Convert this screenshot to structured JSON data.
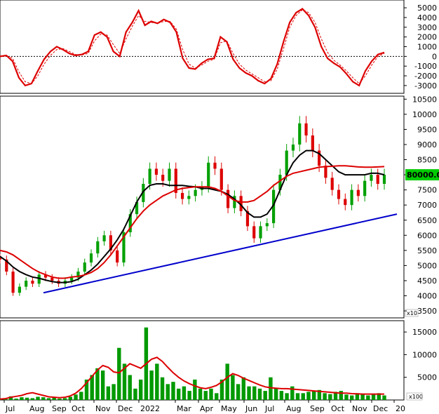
{
  "chart_data": [
    {
      "type": "line",
      "panel": "oscillator",
      "yticks": [
        5000,
        4000,
        3000,
        2000,
        1000,
        0,
        -1000,
        -2000,
        -3000
      ],
      "ylim": [
        -3800,
        5800
      ],
      "zero_line": "dashed",
      "colors": {
        "main": "#dd0000",
        "signal": "#dd0000"
      },
      "series": [
        {
          "style": "solid",
          "values": [
            0,
            100,
            -500,
            -2200,
            -3000,
            -2800,
            -1500,
            -300,
            500,
            1000,
            700,
            300,
            100,
            200,
            500,
            2200,
            2500,
            2000,
            500,
            0,
            2500,
            3500,
            4700,
            3200,
            3600,
            3400,
            3800,
            3500,
            2500,
            -200,
            -1200,
            -1300,
            -700,
            -300,
            -200,
            2000,
            1500,
            -300,
            -1200,
            -1700,
            -2000,
            -2500,
            -2800,
            -2300,
            -800,
            1500,
            3500,
            4500,
            4900,
            4200,
            3000,
            1000,
            -200,
            -700,
            -1100,
            -1800,
            -2600,
            -3000,
            -1500,
            -500,
            200,
            400
          ]
        },
        {
          "style": "dashed",
          "values": [
            0,
            80,
            -200,
            -1600,
            -2600,
            -2800,
            -2000,
            -800,
            100,
            700,
            800,
            500,
            200,
            150,
            300,
            1600,
            2300,
            2200,
            1200,
            300,
            1800,
            3100,
            4200,
            3600,
            3500,
            3400,
            3600,
            3600,
            2800,
            700,
            -800,
            -1200,
            -900,
            -500,
            -300,
            1400,
            1600,
            300,
            -800,
            -1400,
            -1800,
            -2200,
            -2600,
            -2500,
            -1300,
            800,
            3000,
            4200,
            4800,
            4500,
            3500,
            1800,
            400,
            -400,
            -900,
            -1500,
            -2200,
            -2800,
            -2000,
            -900,
            0,
            300
          ]
        }
      ]
    },
    {
      "type": "candlestick",
      "panel": "price",
      "yticks": [
        10500,
        10000,
        9500,
        9000,
        8500,
        8000,
        7500,
        7000,
        6500,
        6000,
        5500,
        5000,
        4500,
        4000,
        3500
      ],
      "ylim": [
        3270,
        10600
      ],
      "multiplier_label": "x10",
      "last_price_label": "80000.00",
      "colors": {
        "up": "#00a000",
        "down": "#dd0000",
        "ma_fast": "#000000",
        "ma_slow": "#dd0000",
        "trendline": "#0000cc"
      },
      "close": [
        5200,
        4800,
        4100,
        4300,
        4500,
        4400,
        4700,
        4600,
        4500,
        4400,
        4500,
        4600,
        4800,
        5100,
        5400,
        5800,
        6000,
        5500,
        5100,
        6100,
        6700,
        7100,
        7700,
        8200,
        8000,
        7800,
        8200,
        7400,
        7200,
        7300,
        7500,
        7600,
        8400,
        8200,
        7500,
        6900,
        7300,
        6800,
        6300,
        5900,
        6300,
        6400,
        7500,
        8000,
        8800,
        9000,
        9700,
        9300,
        8800,
        8300,
        7900,
        7500,
        7200,
        7000,
        7500,
        7300,
        7800,
        8000,
        7700,
        8000
      ],
      "ma_fast": [
        5300,
        5150,
        4950,
        4800,
        4700,
        4620,
        4580,
        4520,
        4470,
        4440,
        4440,
        4470,
        4550,
        4700,
        4850,
        5050,
        5300,
        5550,
        5850,
        6200,
        6650,
        7100,
        7450,
        7650,
        7700,
        7700,
        7650,
        7650,
        7650,
        7620,
        7600,
        7550,
        7550,
        7500,
        7450,
        7350,
        7200,
        7000,
        6750,
        6600,
        6600,
        6700,
        7000,
        7500,
        8000,
        8400,
        8650,
        8800,
        8800,
        8700,
        8500,
        8300,
        8100,
        8000,
        8000,
        8000,
        8000,
        8050,
        8050,
        8000
      ],
      "ma_slow": [
        5500,
        5450,
        5350,
        5200,
        5050,
        4900,
        4780,
        4700,
        4620,
        4580,
        4580,
        4620,
        4640,
        4690,
        4770,
        4900,
        5100,
        5350,
        5650,
        5950,
        6250,
        6550,
        6800,
        7000,
        7150,
        7300,
        7400,
        7500,
        7550,
        7580,
        7600,
        7600,
        7600,
        7550,
        7450,
        7300,
        7150,
        7100,
        7100,
        7150,
        7300,
        7450,
        7650,
        7800,
        7950,
        8050,
        8100,
        8150,
        8200,
        8250,
        8270,
        8280,
        8300,
        8300,
        8280,
        8260,
        8250,
        8250,
        8260,
        8270
      ],
      "trendline": {
        "start": 4100,
        "end": 6700
      }
    },
    {
      "type": "bar",
      "panel": "volume",
      "yticks": [
        15000,
        10000,
        5000
      ],
      "ylim": [
        0,
        17500
      ],
      "multiplier_label": "x100",
      "colors": {
        "bars": "#009900",
        "ma": "#dd0000"
      },
      "values": [
        200,
        400,
        800,
        300,
        600,
        500,
        400,
        700,
        600,
        400,
        500,
        300,
        400,
        700,
        1200,
        1800,
        4500,
        5500,
        7000,
        6500,
        3000,
        3500,
        11500,
        8000,
        5500,
        2500,
        4500,
        16000,
        6500,
        8000,
        5000,
        3500,
        4000,
        2500,
        3000,
        2000,
        4500,
        2500,
        2000,
        2500,
        1500,
        4500,
        8000,
        5500,
        3500,
        5000,
        3000,
        3000,
        2500,
        2000,
        5000,
        2500,
        2000,
        1500,
        3000,
        1500,
        1500,
        1800,
        2000,
        2200,
        1500,
        1300,
        1800,
        2000,
        1200,
        1000,
        1500,
        1200,
        1000,
        1200,
        1500,
        1000
      ],
      "ma": [
        200,
        300,
        600,
        800,
        1000,
        1400,
        1600,
        1300,
        1000,
        700,
        600,
        500,
        600,
        900,
        1500,
        2500,
        3800,
        5200,
        6600,
        7600,
        7200,
        6200,
        6000,
        7000,
        8000,
        7500,
        7000,
        8000,
        9000,
        9400,
        8500,
        7200,
        6000,
        5000,
        4200,
        3600,
        3100,
        2700,
        2500,
        2800,
        3200,
        4000,
        5000,
        5800,
        5400,
        4800,
        4300,
        3800,
        3300,
        2900,
        2700,
        2600,
        2500,
        2500,
        2400,
        2300,
        2200,
        2100,
        2000,
        1900,
        1800,
        1700,
        1600,
        1500,
        1500,
        1400,
        1350,
        1300,
        1300,
        1300,
        1300,
        1300
      ]
    }
  ],
  "x_axis": {
    "labels": [
      "Jul",
      "Aug",
      "Sep",
      "Oct",
      "Nov",
      "Dec",
      "2022",
      "Mar",
      "Apr",
      "May",
      "Jun",
      "Jul",
      "Aug",
      "Sep",
      "Oct",
      "Nov",
      "Dec",
      "20"
    ]
  }
}
